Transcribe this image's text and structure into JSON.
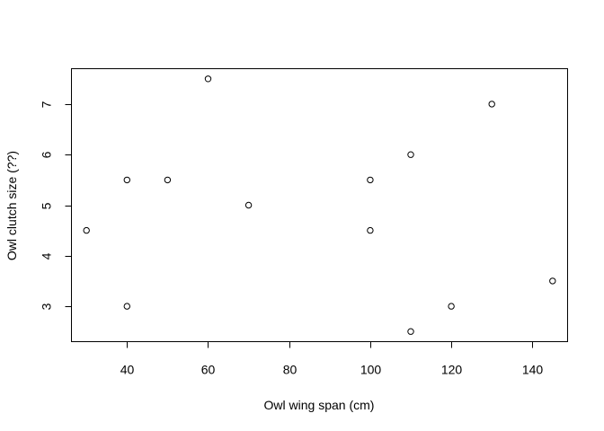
{
  "chart_data": {
    "type": "scatter",
    "title": "",
    "xlabel": "Owl wing span (cm)",
    "ylabel": "Owl clutch size (??)",
    "xlim": [
      26.3,
      148.7
    ],
    "ylim": [
      2.3,
      7.7
    ],
    "xticks": [
      40,
      60,
      80,
      100,
      120,
      140
    ],
    "yticks": [
      3,
      4,
      5,
      6,
      7
    ],
    "grid": false,
    "legend": "none",
    "point_style": "open-circle",
    "point_color": "#000000",
    "series": [
      {
        "x": [
          30,
          40,
          40,
          50,
          60,
          70,
          100,
          100,
          110,
          110,
          120,
          130,
          145
        ],
        "y": [
          4.5,
          5.5,
          3,
          5.5,
          7.5,
          5,
          5.5,
          4.5,
          6,
          2.5,
          3,
          7,
          3.5
        ]
      }
    ]
  }
}
